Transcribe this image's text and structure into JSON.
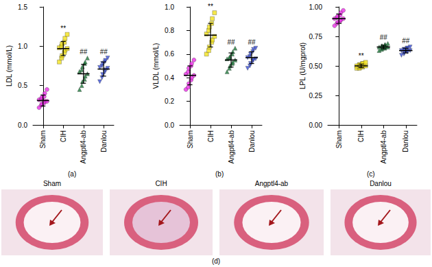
{
  "chart_data": [
    {
      "type": "scatter",
      "label": "(a)",
      "y_label": "LDL (mmol/L)",
      "categories": [
        "Sham",
        "CIH",
        "Angptl4-ab",
        "Danlou"
      ],
      "ylim": [
        0,
        1.5
      ],
      "yticks": [
        {
          "value": 0,
          "label": "0.0"
        },
        0.5,
        {
          "value": 1,
          "label": "1.0"
        },
        1.5
      ],
      "groups": [
        {
          "color": "#ea2ee6",
          "marker": "circle",
          "values": [
            0.22,
            0.25,
            0.27,
            0.28,
            0.3,
            0.3,
            0.32,
            0.33,
            0.35,
            0.36,
            0.4,
            0.45
          ],
          "mean": 0.31,
          "error": 0.07
        },
        {
          "color": "#f2e21c",
          "marker": "square",
          "values": [
            0.8,
            0.85,
            0.88,
            0.92,
            0.95,
            0.97,
            0.98,
            1.0,
            1.03,
            1.05,
            1.1,
            1.15
          ],
          "mean": 0.97,
          "error": 0.09,
          "annotation": "**"
        },
        {
          "color": "#1f7a3c",
          "marker": "triangle",
          "values": [
            0.45,
            0.5,
            0.55,
            0.58,
            0.62,
            0.65,
            0.68,
            0.7,
            0.74,
            0.78,
            0.8,
            0.85
          ],
          "mean": 0.65,
          "error": 0.12,
          "annotation": "##"
        },
        {
          "color": "#3a4fd6",
          "marker": "triangle-down",
          "values": [
            0.55,
            0.6,
            0.64,
            0.67,
            0.7,
            0.72,
            0.73,
            0.75,
            0.78,
            0.8,
            0.82,
            0.85
          ],
          "mean": 0.71,
          "error": 0.09,
          "annotation": "##"
        }
      ]
    },
    {
      "type": "scatter",
      "label": "(b)",
      "y_label": "VLDL (mmol/L)",
      "categories": [
        "Sham",
        "CIH",
        "Angptl4-ab",
        "Danlou"
      ],
      "ylim": [
        0,
        1.0
      ],
      "yticks": [
        {
          "value": 0,
          "label": "0.0"
        },
        0.2,
        0.4,
        0.6,
        0.8,
        {
          "value": 1,
          "label": "1.0"
        }
      ],
      "groups": [
        {
          "color": "#ea2ee6",
          "marker": "circle",
          "values": [
            0.3,
            0.32,
            0.35,
            0.38,
            0.4,
            0.42,
            0.43,
            0.45,
            0.48,
            0.5,
            0.52,
            0.55
          ],
          "mean": 0.42,
          "error": 0.08
        },
        {
          "color": "#f2e21c",
          "marker": "square",
          "values": [
            0.6,
            0.63,
            0.66,
            0.7,
            0.72,
            0.75,
            0.77,
            0.8,
            0.83,
            0.86,
            0.9,
            0.95
          ],
          "mean": 0.76,
          "error": 0.1,
          "annotation": "**"
        },
        {
          "color": "#1f7a3c",
          "marker": "triangle",
          "values": [
            0.45,
            0.48,
            0.5,
            0.52,
            0.53,
            0.55,
            0.56,
            0.57,
            0.58,
            0.6,
            0.62,
            0.65
          ],
          "mean": 0.55,
          "error": 0.06,
          "annotation": "##"
        },
        {
          "color": "#3a4fd6",
          "marker": "triangle-down",
          "values": [
            0.48,
            0.5,
            0.52,
            0.54,
            0.55,
            0.56,
            0.57,
            0.58,
            0.6,
            0.62,
            0.64,
            0.65
          ],
          "mean": 0.57,
          "error": 0.05,
          "annotation": "##"
        }
      ]
    },
    {
      "type": "scatter",
      "label": "(c)",
      "y_label": "LPL (U/mgprot)",
      "categories": [
        "Sham",
        "CIH",
        "Angptl4-ab",
        "Danlou"
      ],
      "ylim": [
        0,
        1.0
      ],
      "yticks": [
        {
          "value": 0,
          "label": "0.00"
        },
        {
          "value": 0.25,
          "label": "0.25"
        },
        {
          "value": 0.5,
          "label": "0.50"
        },
        {
          "value": 0.75,
          "label": "0.75"
        },
        {
          "value": 1,
          "label": "1.00"
        }
      ],
      "groups": [
        {
          "color": "#ea2ee6",
          "marker": "circle",
          "values": [
            0.84,
            0.86,
            0.87,
            0.88,
            0.89,
            0.9,
            0.9,
            0.91,
            0.92,
            0.93,
            0.95,
            0.97
          ],
          "mean": 0.9,
          "error": 0.04
        },
        {
          "color": "#f2e21c",
          "marker": "square",
          "values": [
            0.48,
            0.48,
            0.49,
            0.49,
            0.5,
            0.5,
            0.5,
            0.51,
            0.51,
            0.52,
            0.52,
            0.53
          ],
          "mean": 0.5,
          "error": 0.015,
          "annotation": "**"
        },
        {
          "color": "#1f7a3c",
          "marker": "triangle",
          "values": [
            0.63,
            0.64,
            0.65,
            0.65,
            0.66,
            0.66,
            0.66,
            0.67,
            0.67,
            0.68,
            0.68,
            0.69
          ],
          "mean": 0.66,
          "error": 0.015,
          "annotation": "##"
        },
        {
          "color": "#3a4fd6",
          "marker": "triangle-down",
          "values": [
            0.59,
            0.6,
            0.61,
            0.62,
            0.62,
            0.63,
            0.63,
            0.64,
            0.64,
            0.65,
            0.65,
            0.66
          ],
          "mean": 0.63,
          "error": 0.02,
          "annotation": "##"
        }
      ]
    }
  ],
  "panel_d": {
    "label": "(d)",
    "images": [
      {
        "title": "Sham"
      },
      {
        "title": "CIH"
      },
      {
        "title": "Angptl4-ab"
      },
      {
        "title": "Danlou"
      }
    ]
  }
}
